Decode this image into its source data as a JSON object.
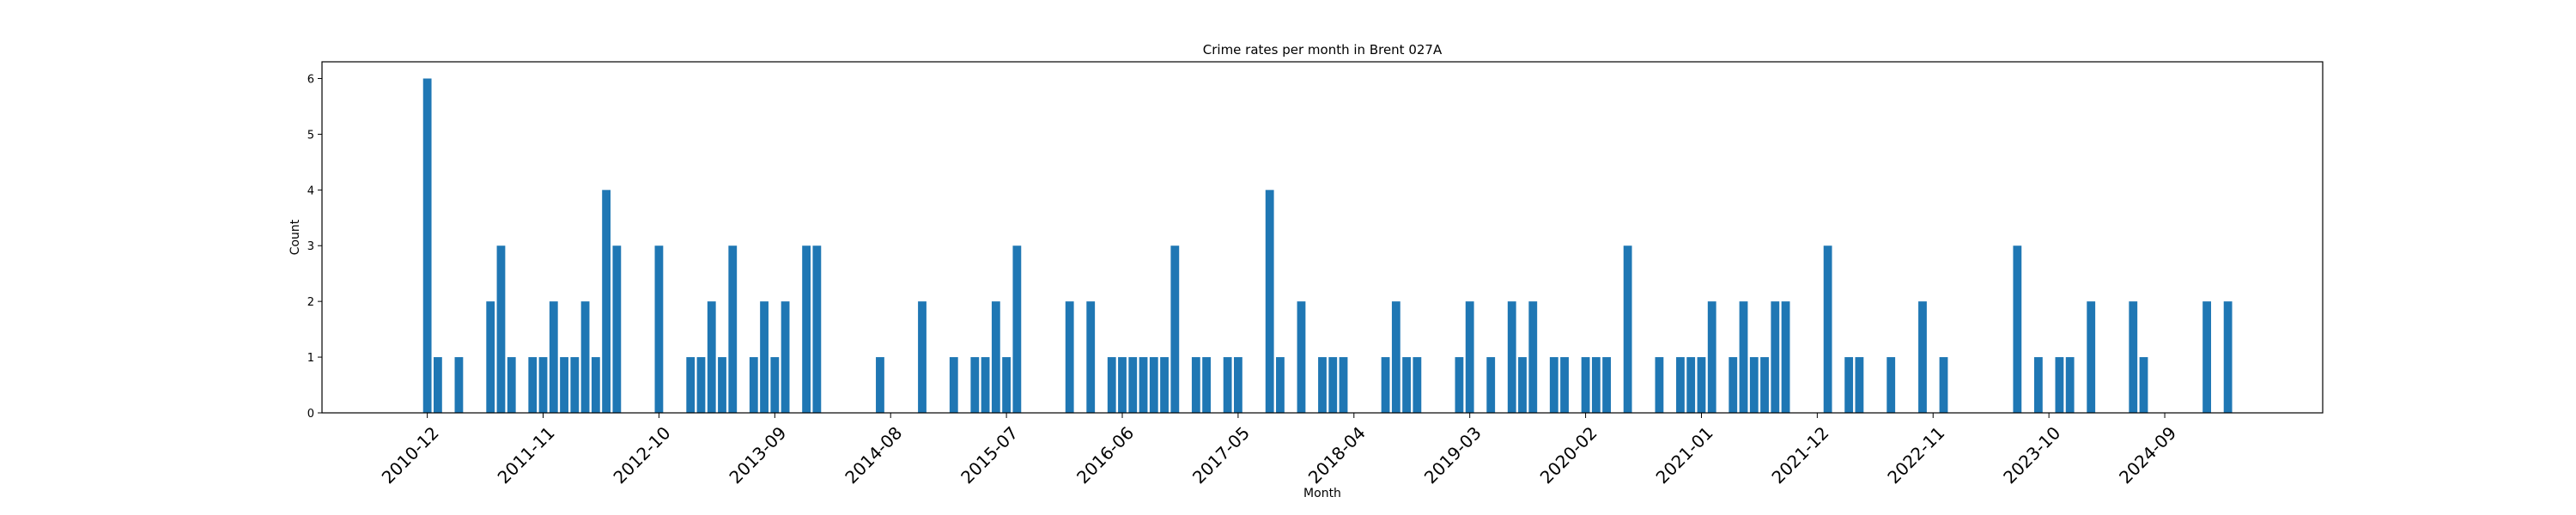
{
  "chart_data": {
    "type": "bar",
    "title": "Crime rates per month in Brent 027A",
    "xlabel": "Month",
    "ylabel": "Count",
    "ylim": [
      0,
      6.3
    ],
    "yticks": [
      0,
      1,
      2,
      3,
      4,
      5,
      6
    ],
    "xlim": [
      "2010-02",
      "2025-12"
    ],
    "xticks": [
      "2010-12",
      "2011-11",
      "2012-10",
      "2013-09",
      "2014-08",
      "2015-07",
      "2016-06",
      "2017-05",
      "2018-04",
      "2019-03",
      "2020-02",
      "2021-01",
      "2021-12",
      "2022-11",
      "2023-10",
      "2024-09"
    ],
    "color": "#1f77b4",
    "grid": false,
    "data": [
      {
        "month": "2010-12",
        "value": 6
      },
      {
        "month": "2011-01",
        "value": 1
      },
      {
        "month": "2011-03",
        "value": 1
      },
      {
        "month": "2011-06",
        "value": 2
      },
      {
        "month": "2011-07",
        "value": 3
      },
      {
        "month": "2011-08",
        "value": 1
      },
      {
        "month": "2011-10",
        "value": 1
      },
      {
        "month": "2011-11",
        "value": 1
      },
      {
        "month": "2011-12",
        "value": 2
      },
      {
        "month": "2012-01",
        "value": 1
      },
      {
        "month": "2012-02",
        "value": 1
      },
      {
        "month": "2012-03",
        "value": 2
      },
      {
        "month": "2012-04",
        "value": 1
      },
      {
        "month": "2012-05",
        "value": 4
      },
      {
        "month": "2012-06",
        "value": 3
      },
      {
        "month": "2012-10",
        "value": 3
      },
      {
        "month": "2013-01",
        "value": 1
      },
      {
        "month": "2013-02",
        "value": 1
      },
      {
        "month": "2013-03",
        "value": 2
      },
      {
        "month": "2013-04",
        "value": 1
      },
      {
        "month": "2013-05",
        "value": 3
      },
      {
        "month": "2013-07",
        "value": 1
      },
      {
        "month": "2013-08",
        "value": 2
      },
      {
        "month": "2013-09",
        "value": 1
      },
      {
        "month": "2013-10",
        "value": 2
      },
      {
        "month": "2013-12",
        "value": 3
      },
      {
        "month": "2014-01",
        "value": 3
      },
      {
        "month": "2014-07",
        "value": 1
      },
      {
        "month": "2014-11",
        "value": 2
      },
      {
        "month": "2015-02",
        "value": 1
      },
      {
        "month": "2015-04",
        "value": 1
      },
      {
        "month": "2015-05",
        "value": 1
      },
      {
        "month": "2015-06",
        "value": 2
      },
      {
        "month": "2015-07",
        "value": 1
      },
      {
        "month": "2015-08",
        "value": 3
      },
      {
        "month": "2016-01",
        "value": 2
      },
      {
        "month": "2016-03",
        "value": 2
      },
      {
        "month": "2016-05",
        "value": 1
      },
      {
        "month": "2016-06",
        "value": 1
      },
      {
        "month": "2016-07",
        "value": 1
      },
      {
        "month": "2016-08",
        "value": 1
      },
      {
        "month": "2016-09",
        "value": 1
      },
      {
        "month": "2016-10",
        "value": 1
      },
      {
        "month": "2016-11",
        "value": 3
      },
      {
        "month": "2017-01",
        "value": 1
      },
      {
        "month": "2017-02",
        "value": 1
      },
      {
        "month": "2017-04",
        "value": 1
      },
      {
        "month": "2017-05",
        "value": 1
      },
      {
        "month": "2017-08",
        "value": 4
      },
      {
        "month": "2017-09",
        "value": 1
      },
      {
        "month": "2017-11",
        "value": 2
      },
      {
        "month": "2018-01",
        "value": 1
      },
      {
        "month": "2018-02",
        "value": 1
      },
      {
        "month": "2018-03",
        "value": 1
      },
      {
        "month": "2018-07",
        "value": 1
      },
      {
        "month": "2018-08",
        "value": 2
      },
      {
        "month": "2018-09",
        "value": 1
      },
      {
        "month": "2018-10",
        "value": 1
      },
      {
        "month": "2019-02",
        "value": 1
      },
      {
        "month": "2019-03",
        "value": 2
      },
      {
        "month": "2019-05",
        "value": 1
      },
      {
        "month": "2019-07",
        "value": 2
      },
      {
        "month": "2019-08",
        "value": 1
      },
      {
        "month": "2019-09",
        "value": 2
      },
      {
        "month": "2019-11",
        "value": 1
      },
      {
        "month": "2019-12",
        "value": 1
      },
      {
        "month": "2020-02",
        "value": 1
      },
      {
        "month": "2020-03",
        "value": 1
      },
      {
        "month": "2020-04",
        "value": 1
      },
      {
        "month": "2020-06",
        "value": 3
      },
      {
        "month": "2020-09",
        "value": 1
      },
      {
        "month": "2020-11",
        "value": 1
      },
      {
        "month": "2020-12",
        "value": 1
      },
      {
        "month": "2021-01",
        "value": 1
      },
      {
        "month": "2021-02",
        "value": 2
      },
      {
        "month": "2021-04",
        "value": 1
      },
      {
        "month": "2021-05",
        "value": 2
      },
      {
        "month": "2021-06",
        "value": 1
      },
      {
        "month": "2021-07",
        "value": 1
      },
      {
        "month": "2021-08",
        "value": 2
      },
      {
        "month": "2021-09",
        "value": 2
      },
      {
        "month": "2022-01",
        "value": 3
      },
      {
        "month": "2022-03",
        "value": 1
      },
      {
        "month": "2022-04",
        "value": 1
      },
      {
        "month": "2022-07",
        "value": 1
      },
      {
        "month": "2022-10",
        "value": 2
      },
      {
        "month": "2022-12",
        "value": 1
      },
      {
        "month": "2023-07",
        "value": 3
      },
      {
        "month": "2023-09",
        "value": 1
      },
      {
        "month": "2023-11",
        "value": 1
      },
      {
        "month": "2023-12",
        "value": 1
      },
      {
        "month": "2024-02",
        "value": 2
      },
      {
        "month": "2024-06",
        "value": 2
      },
      {
        "month": "2024-07",
        "value": 1
      },
      {
        "month": "2025-01",
        "value": 2
      },
      {
        "month": "2025-03",
        "value": 2
      }
    ]
  }
}
